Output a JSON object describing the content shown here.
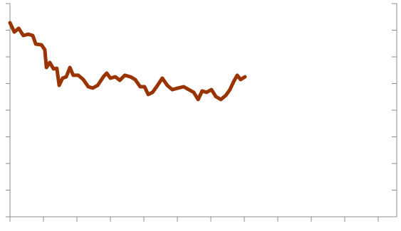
{
  "chart_data": {
    "type": "line",
    "x": [
      0,
      0.13,
      0.26,
      0.4,
      0.55,
      0.68,
      0.77,
      0.94,
      1.04,
      1.09,
      1.19,
      1.3,
      1.4,
      1.47,
      1.57,
      1.68,
      1.79,
      1.89,
      2.04,
      2.19,
      2.34,
      2.47,
      2.62,
      2.79,
      2.89,
      3.0,
      3.15,
      3.28,
      3.43,
      3.6,
      3.74,
      3.89,
      4.02,
      4.13,
      4.26,
      4.38,
      4.55,
      4.7,
      4.85,
      5.02,
      5.19,
      5.34,
      5.49,
      5.62,
      5.74,
      5.87,
      6.02,
      6.15,
      6.3,
      6.45,
      6.57,
      6.68,
      6.79,
      6.89,
      7.02
    ],
    "series": [
      {
        "color": "#993300",
        "values": [
          7.28,
          6.93,
          7.07,
          6.8,
          6.85,
          6.8,
          6.48,
          6.45,
          6.27,
          5.6,
          5.79,
          5.55,
          5.57,
          4.93,
          5.2,
          5.25,
          5.6,
          5.31,
          5.31,
          5.15,
          4.88,
          4.83,
          4.93,
          5.25,
          5.39,
          5.2,
          5.25,
          5.12,
          5.31,
          5.25,
          5.15,
          4.88,
          4.88,
          4.59,
          4.67,
          4.88,
          5.2,
          4.93,
          4.77,
          4.83,
          4.88,
          4.77,
          4.67,
          4.4,
          4.72,
          4.67,
          4.77,
          4.51,
          4.4,
          4.56,
          4.77,
          5.07,
          5.31,
          5.15,
          5.25
        ]
      }
    ],
    "xlim": [
      0,
      11.55
    ],
    "xticks": [
      0,
      1,
      2,
      3,
      4,
      5,
      6,
      7,
      8,
      9,
      10,
      11
    ],
    "ylim": [
      0,
      8
    ],
    "yticks": [
      0,
      1,
      2,
      3,
      4,
      5,
      6,
      7,
      8
    ]
  }
}
